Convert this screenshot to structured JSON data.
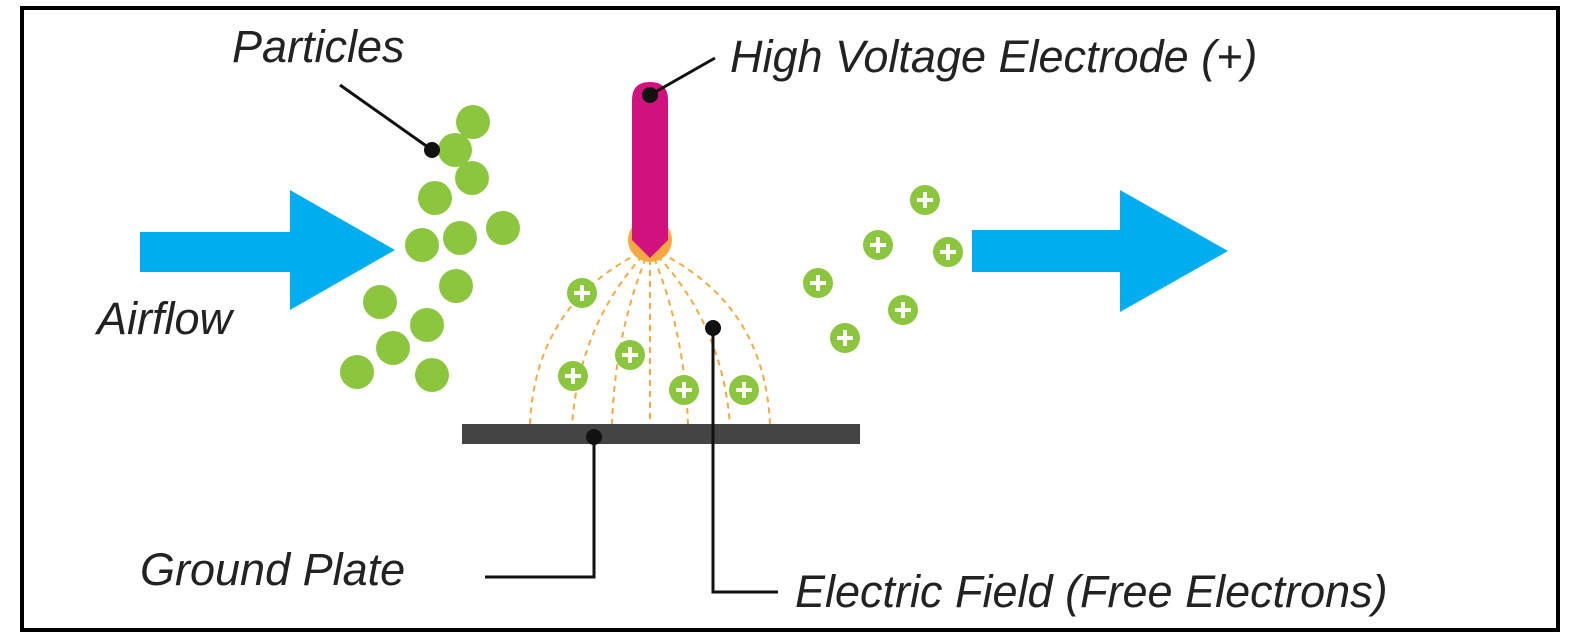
{
  "labels": {
    "particles": "Particles",
    "electrode": "High Voltage Electrode (+)",
    "airflow": "Airflow",
    "ground_plate": "Ground Plate",
    "electric_field": "Electric Field (Free Electrons)"
  }
}
